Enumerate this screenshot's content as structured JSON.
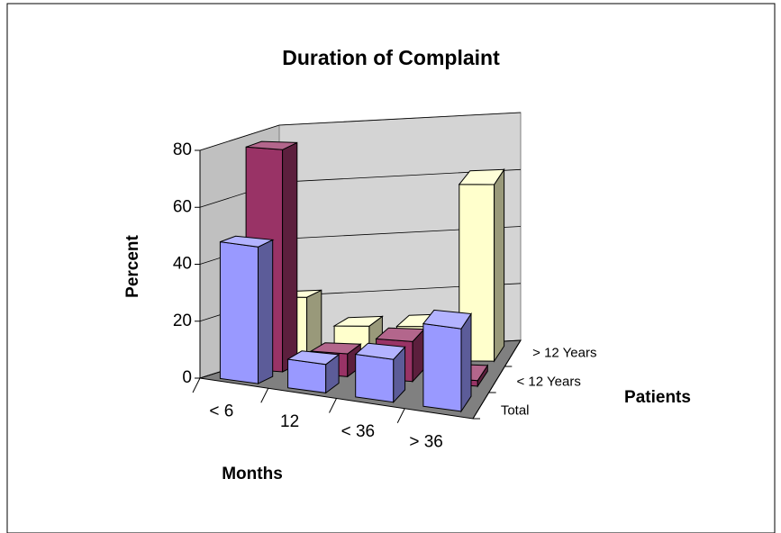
{
  "chart_data": {
    "type": "bar3d",
    "title": "Duration of Complaint",
    "y_label": "Percent",
    "x_label": "Months",
    "z_label": "Patients",
    "categories": [
      "< 6",
      "12",
      "< 36",
      "> 36"
    ],
    "series": [
      {
        "name": "Total",
        "color": "#9999ff",
        "values": [
          48,
          10,
          15,
          29
        ]
      },
      {
        "name": "< 12 Years",
        "color": "#993366",
        "values": [
          78,
          8,
          14,
          2
        ]
      },
      {
        "name": "> 12 Years",
        "color": "#ffffcc",
        "values": [
          22,
          12,
          12,
          62
        ]
      }
    ],
    "ylim": [
      0,
      80
    ],
    "yticks": [
      0,
      20,
      40,
      60,
      80
    ],
    "grid": true
  }
}
